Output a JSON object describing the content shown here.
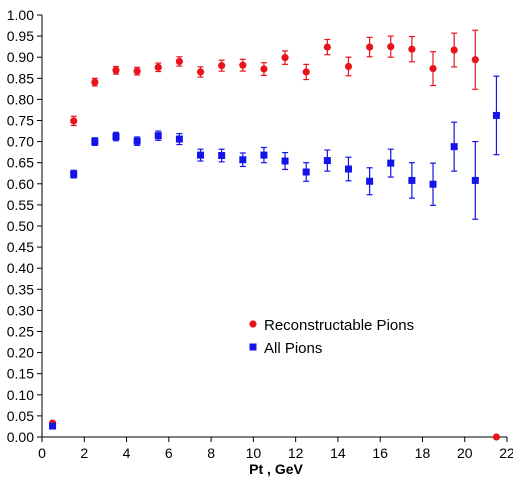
{
  "chart_data": {
    "type": "scatter",
    "title": "",
    "xlabel": "Pt , GeV",
    "ylabel": "",
    "xlim": [
      0,
      22
    ],
    "ylim": [
      0,
      1.0
    ],
    "x_ticks": [
      0,
      2,
      4,
      6,
      8,
      10,
      12,
      14,
      16,
      18,
      20,
      22
    ],
    "y_ticks": [
      0.0,
      0.05,
      0.1,
      0.15,
      0.2,
      0.25,
      0.3,
      0.35,
      0.4,
      0.45,
      0.5,
      0.55,
      0.6,
      0.65,
      0.7,
      0.75,
      0.8,
      0.85,
      0.9,
      0.95,
      1.0
    ],
    "grid": false,
    "legend_position": "center-right",
    "series": [
      {
        "name": "Reconstructable Pions",
        "color": "#e8141c",
        "marker": "circle",
        "x": [
          0.5,
          1.5,
          2.5,
          3.5,
          4.5,
          5.5,
          6.5,
          7.5,
          8.5,
          9.5,
          10.5,
          11.5,
          12.5,
          13.5,
          14.5,
          15.5,
          16.5,
          17.5,
          18.5,
          19.5,
          20.5,
          21.5
        ],
        "y": [
          0.033,
          0.749,
          0.841,
          0.869,
          0.867,
          0.876,
          0.89,
          0.865,
          0.88,
          0.881,
          0.872,
          0.899,
          0.865,
          0.924,
          0.878,
          0.924,
          0.925,
          0.919,
          0.873,
          0.917,
          0.894,
          0.0
        ],
        "err": [
          0.003,
          0.011,
          0.009,
          0.009,
          0.009,
          0.01,
          0.011,
          0.012,
          0.013,
          0.014,
          0.015,
          0.016,
          0.018,
          0.018,
          0.022,
          0.023,
          0.025,
          0.03,
          0.04,
          0.04,
          0.07,
          0.0
        ]
      },
      {
        "name": "All Pions",
        "color": "#1414e8",
        "marker": "square",
        "x": [
          0.5,
          1.5,
          2.5,
          3.5,
          4.5,
          5.5,
          6.5,
          7.5,
          8.5,
          9.5,
          10.5,
          11.5,
          12.5,
          13.5,
          14.5,
          15.5,
          16.5,
          17.5,
          18.5,
          19.5,
          20.5,
          21.5
        ],
        "y": [
          0.026,
          0.623,
          0.7,
          0.712,
          0.701,
          0.714,
          0.706,
          0.668,
          0.667,
          0.657,
          0.668,
          0.654,
          0.628,
          0.655,
          0.635,
          0.606,
          0.649,
          0.608,
          0.599,
          0.688,
          0.608,
          0.762
        ],
        "err": [
          0.003,
          0.009,
          0.009,
          0.01,
          0.01,
          0.011,
          0.013,
          0.014,
          0.015,
          0.016,
          0.018,
          0.02,
          0.022,
          0.025,
          0.028,
          0.032,
          0.033,
          0.042,
          0.05,
          0.058,
          0.092,
          0.093
        ]
      }
    ]
  }
}
